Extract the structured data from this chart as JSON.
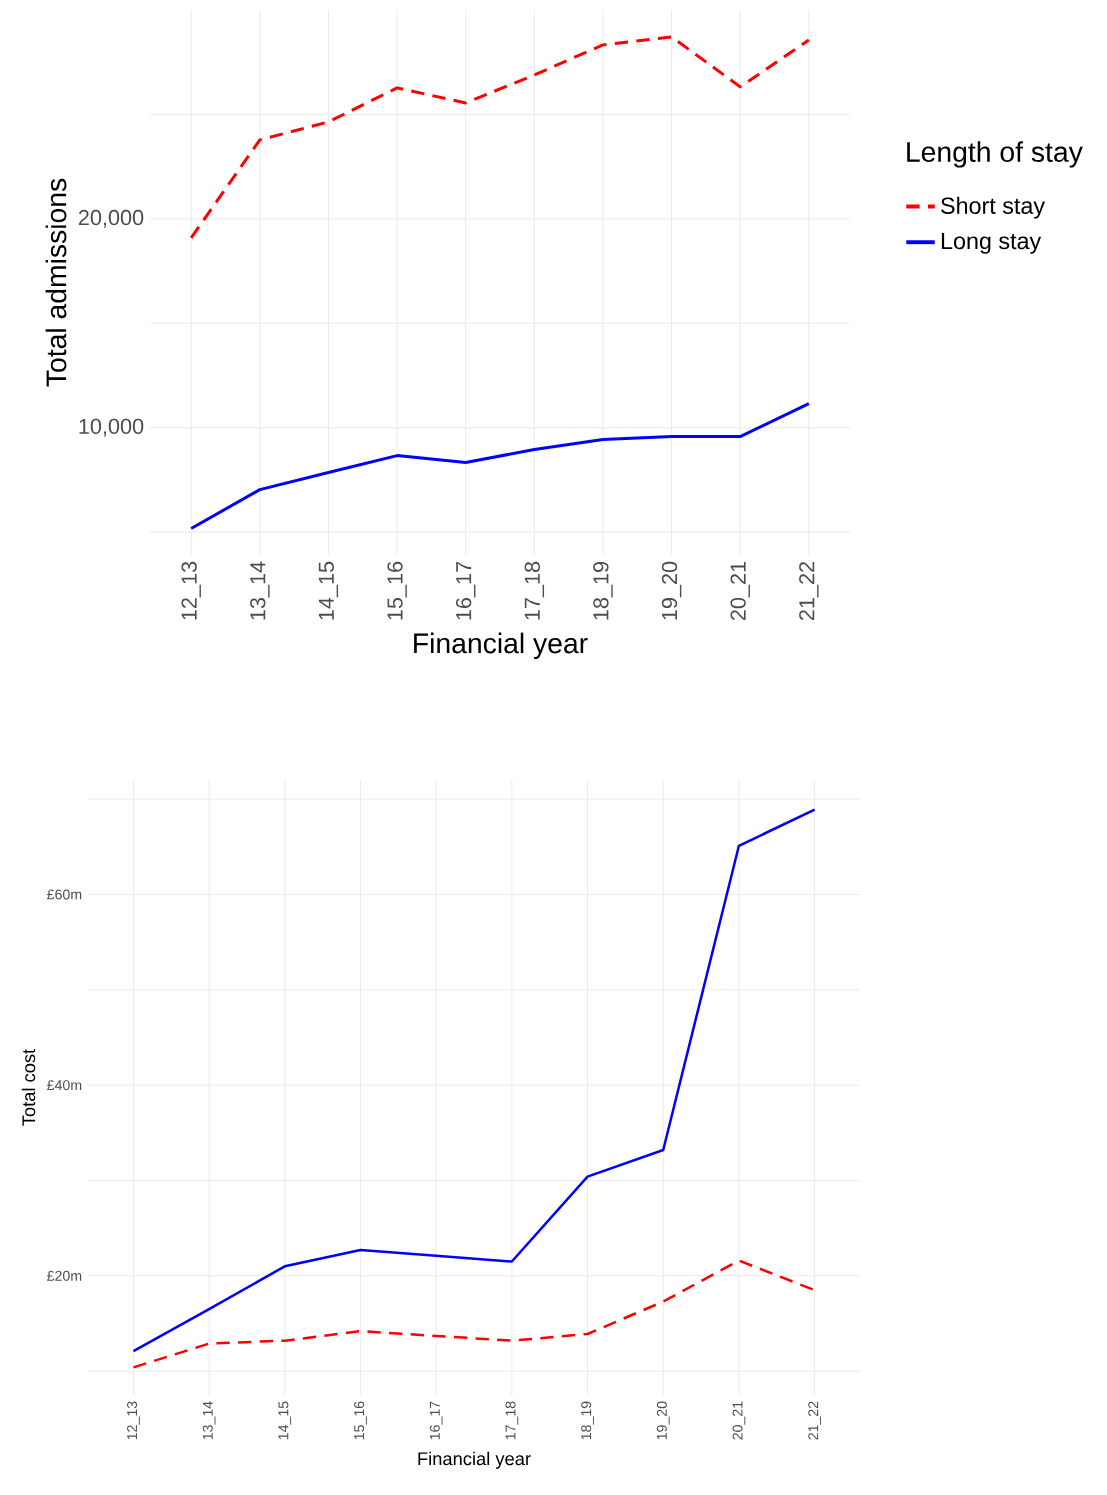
{
  "chart_data": [
    {
      "type": "line",
      "xlabel": "Financial year",
      "ylabel": "Total admissions",
      "legend_title": "Length of stay",
      "legend": "right",
      "grid": true,
      "categories": [
        "12_13",
        "13_14",
        "14_15",
        "15_16",
        "16_17",
        "17_18",
        "18_19",
        "19_20",
        "20_21",
        "21_22"
      ],
      "ylim": [
        3900,
        30000
      ],
      "yticks": [
        {
          "value": 5000,
          "label": null
        },
        {
          "value": 10000,
          "label": "10,000"
        },
        {
          "value": 15000,
          "label": null
        },
        {
          "value": 20000,
          "label": "20,000"
        },
        {
          "value": 25000,
          "label": null
        }
      ],
      "series": [
        {
          "name": "Short stay",
          "color": "#ff0000",
          "line_style": "dashed",
          "values": [
            19090,
            23780,
            24640,
            26270,
            25550,
            26890,
            28330,
            28710,
            26320,
            28560
          ]
        },
        {
          "name": "Long stay",
          "color": "#0000ff",
          "line_style": "solid",
          "values": [
            5170,
            7030,
            7850,
            8660,
            8330,
            8950,
            9430,
            9570,
            9570,
            11150
          ]
        }
      ]
    },
    {
      "type": "line",
      "xlabel": "Financial year",
      "ylabel": "Total cost",
      "legend": false,
      "grid": true,
      "categories": [
        "12_13",
        "13_14",
        "14_15",
        "15_16",
        "16_17",
        "17_18",
        "18_19",
        "19_20",
        "20_21",
        "21_22"
      ],
      "ylim": [
        7.5,
        72
      ],
      "yticks": [
        {
          "value": 10,
          "label": null
        },
        {
          "value": 20,
          "label": "£20m"
        },
        {
          "value": 30,
          "label": null
        },
        {
          "value": 40,
          "label": "£40m"
        },
        {
          "value": 50,
          "label": null
        },
        {
          "value": 60,
          "label": "£60m"
        },
        {
          "value": 70,
          "label": null
        }
      ],
      "series": [
        {
          "color": "#ff0000",
          "line_style": "dashed",
          "values": [
            10.4,
            12.9,
            13.2,
            14.2,
            13.7,
            13.2,
            13.9,
            17.3,
            21.6,
            18.5
          ]
        },
        {
          "color": "#0000ff",
          "line_style": "solid",
          "values": [
            12.1,
            16.5,
            21.0,
            22.7,
            22.1,
            21.5,
            30.4,
            33.2,
            65.1,
            68.9
          ]
        }
      ]
    }
  ]
}
